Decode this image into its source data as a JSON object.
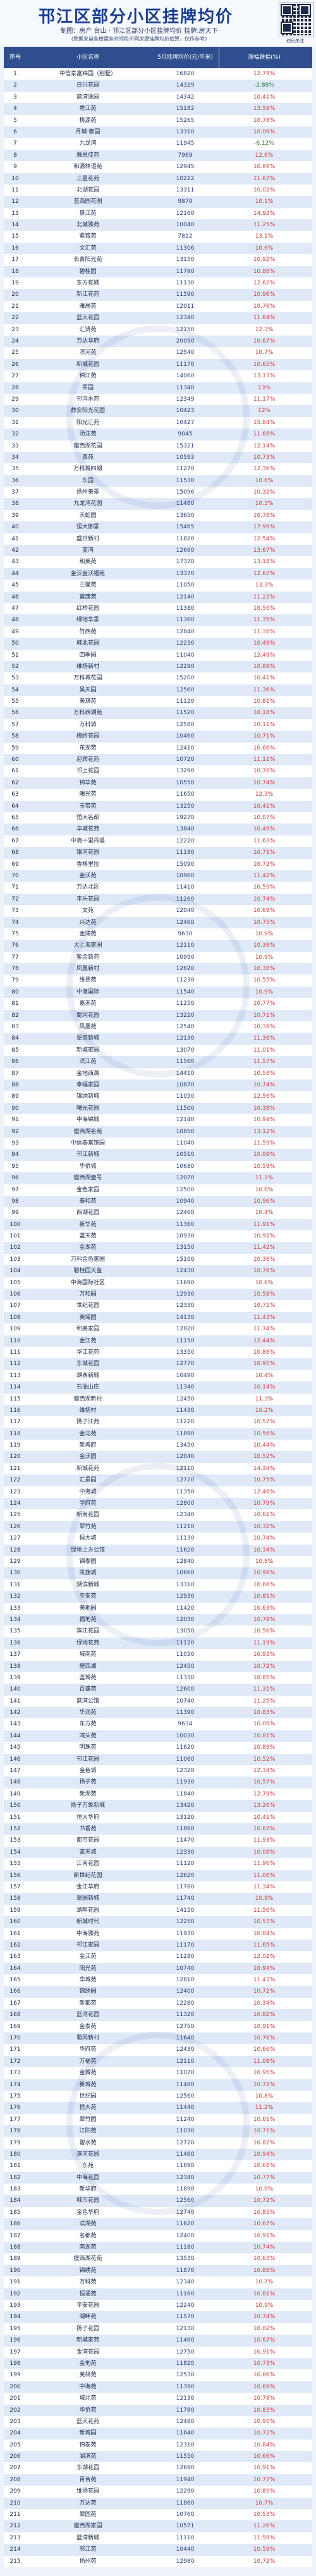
{
  "header": {
    "title": "邗江区部分小区挂牌均价",
    "subtitle": "制图：房产 台山 · 邗江区部分小区挂牌均价  挂牌:房天下",
    "note": "(数据来自各楼盘各时间段不同房源挂牌均价估算，仅作参考)"
  },
  "qr_caption": "扫码关注",
  "table": {
    "columns": [
      "序号",
      "小区名称",
      "5月挂牌均价(元/平米)",
      "涨幅跌幅(%)"
    ],
    "rows": [
      [
        "1",
        "中信泰富锦园（别墅）",
        "16820",
        "12.79%"
      ],
      [
        "2",
        "日兴花园",
        "14329",
        "-2.88%"
      ],
      [
        "3",
        "蓝湾逸园",
        "14342",
        "10.41%"
      ],
      [
        "4",
        "秀江苑",
        "15182",
        "13.59%"
      ],
      [
        "5",
        "桃源苑",
        "15265",
        "10.78%"
      ],
      [
        "6",
        "月城·御园",
        "13310",
        "10.09%"
      ],
      [
        "7",
        "九龙湾",
        "11945",
        "-6.12%"
      ],
      [
        "8",
        "雅思佳苑",
        "7969",
        "12.6%"
      ],
      [
        "9",
        "和源林语苑",
        "12945",
        "10.89%"
      ],
      [
        "10",
        "三星花苑",
        "10222",
        "11.67%"
      ],
      [
        "11",
        "北湖花园",
        "13311",
        "10.02%"
      ],
      [
        "12",
        "蓝西园花园",
        "9870",
        "10.1%"
      ],
      [
        "13",
        "景江苑",
        "12160",
        "14.92%"
      ],
      [
        "14",
        "北城雅苑",
        "10040",
        "11.25%"
      ],
      [
        "15",
        "紫薇苑",
        "7812",
        "13.1%"
      ],
      [
        "16",
        "文汇苑",
        "11306",
        "10.6%"
      ],
      [
        "17",
        "长青阳光苑",
        "13150",
        "10.92%"
      ],
      [
        "18",
        "碧桂园",
        "11790",
        "10.88%"
      ],
      [
        "19",
        "东方花城",
        "11130",
        "12.62%"
      ],
      [
        "20",
        "新江花苑",
        "11590",
        "10.96%"
      ],
      [
        "21",
        "雅居苑",
        "12011",
        "10.76%"
      ],
      [
        "22",
        "蓝天花园",
        "12340",
        "11.64%"
      ],
      [
        "23",
        "汇贤苑",
        "12150",
        "12.3%"
      ],
      [
        "24",
        "万达华府",
        "20090",
        "10.67%"
      ],
      [
        "25",
        "滨河苑",
        "12540",
        "10.7%"
      ],
      [
        "26",
        "新城花园",
        "11170",
        "10.65%"
      ],
      [
        "27",
        "锦江苑",
        "14060",
        "13.13%"
      ],
      [
        "28",
        "翠园",
        "11340",
        "13%"
      ],
      [
        "29",
        "邗沟水苑",
        "12349",
        "11.17%"
      ],
      [
        "30",
        "静安阳光花园",
        "10423",
        "12%"
      ],
      [
        "31",
        "阳光汇苑",
        "10427",
        "15.84%"
      ],
      [
        "32",
        "汤汪苑",
        "9045",
        "11.68%"
      ],
      [
        "33",
        "瘦西湖花园",
        "15321",
        "12.14%"
      ],
      [
        "34",
        "西苑",
        "10593",
        "10.73%"
      ],
      [
        "35",
        "万科城四期",
        "11270",
        "12.36%"
      ],
      [
        "36",
        "东园",
        "11530",
        "10.6%"
      ],
      [
        "37",
        "扬州美景",
        "15096",
        "10.32%"
      ],
      [
        "38",
        "九龙湾花园",
        "11480",
        "10.3%"
      ],
      [
        "39",
        "天虹园",
        "13650",
        "10.78%"
      ],
      [
        "40",
        "恒大御景",
        "15465",
        "17.99%"
      ],
      [
        "41",
        "盛世新村",
        "11820",
        "12.54%"
      ],
      [
        "42",
        "蓝湾",
        "12660",
        "13.67%"
      ],
      [
        "43",
        "和美苑",
        "17370",
        "13.18%"
      ],
      [
        "44",
        "金沃金沃福苑",
        "13370",
        "12.67%"
      ],
      [
        "45",
        "兰馨苑",
        "11050",
        "13.3%"
      ],
      [
        "46",
        "富康苑",
        "12140",
        "11.22%"
      ],
      [
        "47",
        "红桥花园",
        "11380",
        "10.56%"
      ],
      [
        "48",
        "绿地华景",
        "11360",
        "11.35%"
      ],
      [
        "49",
        "竹西苑",
        "12840",
        "11.38%"
      ],
      [
        "50",
        "城北花园",
        "12230",
        "10.49%"
      ],
      [
        "51",
        "四季园",
        "11040",
        "12.49%"
      ],
      [
        "52",
        "维扬新村",
        "12290",
        "10.89%"
      ],
      [
        "53",
        "万科城花园",
        "15200",
        "10.41%"
      ],
      [
        "54",
        "昊天园",
        "12560",
        "11.36%"
      ],
      [
        "55",
        "美琪苑",
        "11120",
        "10.81%"
      ],
      [
        "56",
        "万科西湖苑",
        "11520",
        "10.18%"
      ],
      [
        "57",
        "万科城",
        "12580",
        "10.11%"
      ],
      [
        "58",
        "梅岭花园",
        "10460",
        "10.71%"
      ],
      [
        "59",
        "东湖苑",
        "12410",
        "10.66%"
      ],
      [
        "60",
        "迎宾花苑",
        "10720",
        "11.11%"
      ],
      [
        "61",
        "邗上花园",
        "13290",
        "10.78%"
      ],
      [
        "62",
        "锦华苑",
        "10550",
        "10.74%"
      ],
      [
        "63",
        "曙光苑",
        "11650",
        "12.3%"
      ],
      [
        "64",
        "玉带苑",
        "13250",
        "10.41%"
      ],
      [
        "65",
        "恒大名都",
        "19270",
        "10.07%"
      ],
      [
        "66",
        "华城花苑",
        "13840",
        "10.49%"
      ],
      [
        "67",
        "中海十里丹堤",
        "12220",
        "11.63%"
      ],
      [
        "68",
        "银河花园",
        "11180",
        "10.71%"
      ],
      [
        "69",
        "香格里拉",
        "15090",
        "10.72%"
      ],
      [
        "70",
        "金沃苑",
        "10960",
        "11.42%"
      ],
      [
        "71",
        "万达北区",
        "11410",
        "10.59%"
      ],
      [
        "72",
        "丰乐花园",
        "11260",
        "10.74%"
      ],
      [
        "73",
        "文苑",
        "12040",
        "10.69%"
      ],
      [
        "74",
        "兴达苑",
        "12460",
        "10.75%"
      ],
      [
        "75",
        "金湾苑",
        "9630",
        "10.9%"
      ],
      [
        "76",
        "大上海家园",
        "12110",
        "10.36%"
      ],
      [
        "77",
        "紫金新苑",
        "10990",
        "10.9%"
      ],
      [
        "78",
        "凤凰新村",
        "12620",
        "10.38%"
      ],
      [
        "79",
        "维扬苑",
        "11230",
        "10.55%"
      ],
      [
        "80",
        "中海国际",
        "11540",
        "10.9%"
      ],
      [
        "81",
        "嘉禾苑",
        "11250",
        "10.77%"
      ],
      [
        "82",
        "蜀冈花园",
        "13220",
        "10.71%"
      ],
      [
        "83",
        "凤凰苑",
        "12540",
        "10.39%"
      ],
      [
        "84",
        "翠岗新城",
        "12130",
        "11.36%"
      ],
      [
        "85",
        "新城家园",
        "13070",
        "11.01%"
      ],
      [
        "86",
        "滨江苑",
        "11560",
        "11.57%"
      ],
      [
        "87",
        "金地西湖",
        "14410",
        "10.58%"
      ],
      [
        "88",
        "幸福家园",
        "10870",
        "10.74%"
      ],
      [
        "89",
        "锦绣新城",
        "11050",
        "12.56%"
      ],
      [
        "90",
        "曙光花园",
        "11500",
        "10.38%"
      ],
      [
        "91",
        "中海锦城",
        "12140",
        "10.94%"
      ],
      [
        "92",
        "瘦西湖名苑",
        "10850",
        "13.12%"
      ],
      [
        "93",
        "中信泰富锦园",
        "11040",
        "11.59%"
      ],
      [
        "94",
        "邗江新城",
        "10510",
        "10.09%"
      ],
      [
        "95",
        "华侨城",
        "10680",
        "10.59%"
      ],
      [
        "96",
        "瘦西湖壹号",
        "12070",
        "11.1%"
      ],
      [
        "97",
        "金色家园",
        "12500",
        "10.6%"
      ],
      [
        "98",
        "泰和苑",
        "10940",
        "10.96%"
      ],
      [
        "99",
        "西湖花园",
        "12460",
        "10.4%"
      ],
      [
        "100",
        "新华苑",
        "11360",
        "11.91%"
      ],
      [
        "101",
        "蓝天苑",
        "10930",
        "10.92%"
      ],
      [
        "102",
        "金湖苑",
        "13150",
        "11.42%"
      ],
      [
        "103",
        "万科金色家园",
        "15100",
        "10.36%"
      ],
      [
        "104",
        "碧桂园天玺",
        "12430",
        "10.76%"
      ],
      [
        "105",
        "中海国际社区",
        "11690",
        "10.6%"
      ],
      [
        "106",
        "万和园",
        "12930",
        "10.58%"
      ],
      [
        "107",
        "世纪花园",
        "12330",
        "10.71%"
      ],
      [
        "108",
        "美域园",
        "14130",
        "11.43%"
      ],
      [
        "109",
        "和美家园",
        "12820",
        "11.74%"
      ],
      [
        "110",
        "金江苑",
        "11150",
        "12.44%"
      ],
      [
        "111",
        "华江花苑",
        "13350",
        "10.86%"
      ],
      [
        "112",
        "东城花园",
        "12770",
        "10.95%"
      ],
      [
        "113",
        "湖西新城",
        "10490",
        "10.4%"
      ],
      [
        "114",
        "石油山庄",
        "11340",
        "10.14%"
      ],
      [
        "115",
        "瘦西湖新村",
        "12450",
        "11.3%"
      ],
      [
        "116",
        "维扬村",
        "11430",
        "10.2%"
      ],
      [
        "117",
        "扬子江苑",
        "11220",
        "10.57%"
      ],
      [
        "118",
        "金马苑",
        "11890",
        "10.56%"
      ],
      [
        "119",
        "新城府",
        "13450",
        "10.44%"
      ],
      [
        "120",
        "金沃园",
        "12040",
        "10.52%"
      ],
      [
        "121",
        "新城花苑",
        "12110",
        "14.34%"
      ],
      [
        "122",
        "汇景园",
        "12720",
        "10.75%"
      ],
      [
        "123",
        "中海城",
        "11350",
        "12.46%"
      ],
      [
        "124",
        "学府苑",
        "12800",
        "10.79%"
      ],
      [
        "125",
        "新南花园",
        "12340",
        "10.61%"
      ],
      [
        "126",
        "翠竹苑",
        "11210",
        "10.32%"
      ],
      [
        "127",
        "恒大城",
        "11130",
        "10.74%"
      ],
      [
        "128",
        "绿地上方公馆",
        "11620",
        "10.34%"
      ],
      [
        "129",
        "锦泰园",
        "12840",
        "10.8%"
      ],
      [
        "130",
        "凯旋城",
        "10660",
        "10.99%"
      ],
      [
        "131",
        "湖滨新城",
        "13310",
        "10.66%"
      ],
      [
        "132",
        "平安苑",
        "12930",
        "10.81%"
      ],
      [
        "133",
        "美地园",
        "11420",
        "10.63%"
      ],
      [
        "134",
        "福地苑",
        "12030",
        "10.79%"
      ],
      [
        "135",
        "滨江花园",
        "13050",
        "10.56%"
      ],
      [
        "136",
        "绿地花苑",
        "11120",
        "11.19%"
      ],
      [
        "137",
        "城南苑",
        "11050",
        "10.93%"
      ],
      [
        "138",
        "瘦西湖",
        "12450",
        "10.72%"
      ],
      [
        "139",
        "蓝城苑",
        "11330",
        "10.85%"
      ],
      [
        "140",
        "百盛苑",
        "12600",
        "11.31%"
      ],
      [
        "141",
        "蓝湾公馆",
        "10740",
        "11.25%"
      ],
      [
        "142",
        "华润苑",
        "11390",
        "10.83%"
      ],
      [
        "143",
        "东方苑",
        "9634",
        "10.09%"
      ],
      [
        "144",
        "湾头苑",
        "10030",
        "10.81%"
      ],
      [
        "145",
        "明珠苑",
        "11620",
        "10.89%"
      ],
      [
        "146",
        "邗江花园",
        "11060",
        "10.52%"
      ],
      [
        "147",
        "金色城",
        "12320",
        "12.34%"
      ],
      [
        "148",
        "扬子苑",
        "11930",
        "10.57%"
      ],
      [
        "149",
        "新湖苑",
        "11840",
        "12.79%"
      ],
      [
        "150",
        "扬子万象新城",
        "13420",
        "13.26%"
      ],
      [
        "151",
        "恒大华府",
        "13120",
        "10.41%"
      ],
      [
        "152",
        "书香苑",
        "11860",
        "10.67%"
      ],
      [
        "153",
        "都市花园",
        "11470",
        "11.93%"
      ],
      [
        "154",
        "蓝天城",
        "12330",
        "10.08%"
      ],
      [
        "155",
        "江南花园",
        "11120",
        "11.96%"
      ],
      [
        "156",
        "新世纪花园",
        "12620",
        "11.06%"
      ],
      [
        "157",
        "金江华府",
        "11780",
        "11.34%"
      ],
      [
        "158",
        "翠园新城",
        "11740",
        "10.9%"
      ],
      [
        "159",
        "湖畔花园",
        "14150",
        "11.56%"
      ],
      [
        "160",
        "新城时代",
        "12250",
        "10.53%"
      ],
      [
        "161",
        "中海雅苑",
        "11930",
        "10.84%"
      ],
      [
        "162",
        "邗江家园",
        "11170",
        "11.65%"
      ],
      [
        "163",
        "金江苑",
        "11280",
        "12.02%"
      ],
      [
        "164",
        "阳光苑",
        "10740",
        "10.94%"
      ],
      [
        "165",
        "华城苑",
        "12810",
        "11.43%"
      ],
      [
        "166",
        "锦绣园",
        "12400",
        "10.72%"
      ],
      [
        "167",
        "新都苑",
        "12280",
        "10.34%"
      ],
      [
        "168",
        "蓝湾花园",
        "11320",
        "10.82%"
      ],
      [
        "169",
        "金泰苑",
        "12750",
        "10.91%"
      ],
      [
        "170",
        "蜀冈新村",
        "11640",
        "10.76%"
      ],
      [
        "171",
        "华府苑",
        "12430",
        "10.66%"
      ],
      [
        "172",
        "万福苑",
        "12110",
        "11.08%"
      ],
      [
        "173",
        "金城苑",
        "11070",
        "10.95%"
      ],
      [
        "174",
        "新城苑",
        "11480",
        "10.72%"
      ],
      [
        "175",
        "世纪园",
        "12560",
        "10.8%"
      ],
      [
        "176",
        "恒大苑",
        "11440",
        "11.2%"
      ],
      [
        "177",
        "翠竹园",
        "11240",
        "10.61%"
      ],
      [
        "178",
        "江阳苑",
        "11030",
        "10.71%"
      ],
      [
        "179",
        "碧水苑",
        "12720",
        "10.82%"
      ],
      [
        "180",
        "滨河花园",
        "11460",
        "10.94%"
      ],
      [
        "181",
        "东苑",
        "11890",
        "10.68%"
      ],
      [
        "182",
        "中海花园",
        "12340",
        "10.77%"
      ],
      [
        "183",
        "新华府",
        "11890",
        "10.9%"
      ],
      [
        "184",
        "城市花园",
        "12560",
        "10.72%"
      ],
      [
        "185",
        "金色华府",
        "12740",
        "10.85%"
      ],
      [
        "186",
        "滨湖苑",
        "11620",
        "10.67%"
      ],
      [
        "187",
        "名都苑",
        "12400",
        "10.91%"
      ],
      [
        "188",
        "南湖苑",
        "11180",
        "10.74%"
      ],
      [
        "189",
        "瘦西湖花苑",
        "13530",
        "10.63%"
      ],
      [
        "190",
        "锦绣苑",
        "11870",
        "10.88%"
      ],
      [
        "191",
        "万科苑",
        "12340",
        "10.7%"
      ],
      [
        "192",
        "恒通苑",
        "11160",
        "10.81%"
      ],
      [
        "193",
        "平安花园",
        "12240",
        "10.9%"
      ],
      [
        "194",
        "湖畔苑",
        "11570",
        "10.74%"
      ],
      [
        "195",
        "扬子花园",
        "12130",
        "10.82%"
      ],
      [
        "196",
        "新城家苑",
        "11460",
        "10.67%"
      ],
      [
        "197",
        "金湾花园",
        "12750",
        "10.91%"
      ],
      [
        "198",
        "金地苑",
        "11820",
        "10.73%"
      ],
      [
        "199",
        "美林苑",
        "12530",
        "10.86%"
      ],
      [
        "200",
        "中海苑",
        "11390",
        "10.69%"
      ],
      [
        "201",
        "城北苑",
        "12130",
        "10.78%"
      ],
      [
        "202",
        "华侨苑",
        "11780",
        "10.83%"
      ],
      [
        "203",
        "蓝天花苑",
        "12480",
        "10.95%"
      ],
      [
        "204",
        "新城园",
        "11640",
        "10.72%"
      ],
      [
        "205",
        "锦泰苑",
        "12310",
        "10.84%"
      ],
      [
        "206",
        "湖滨苑",
        "11550",
        "10.66%"
      ],
      [
        "207",
        "东湖花园",
        "12690",
        "10.91%"
      ],
      [
        "208",
        "百合苑",
        "11940",
        "10.77%"
      ],
      [
        "209",
        "维扬花园",
        "12290",
        "10.89%"
      ],
      [
        "210",
        "万达苑",
        "11860",
        "10.7%"
      ],
      [
        "211",
        "翠园苑",
        "10760",
        "10.53%"
      ],
      [
        "212",
        "瘦西湖家园",
        "10571",
        "11.26%"
      ],
      [
        "213",
        "蓝湾新城",
        "11110",
        "11.59%"
      ],
      [
        "214",
        "邗江苑",
        "10440",
        "10.59%"
      ],
      [
        "215",
        "扬州苑",
        "12980",
        "10.72%"
      ]
    ]
  },
  "colors": {
    "header_bg": "#2f4e8f",
    "row_alt": "#dfe9f8",
    "up": "#d8383a",
    "down": "#2f7a3a"
  }
}
